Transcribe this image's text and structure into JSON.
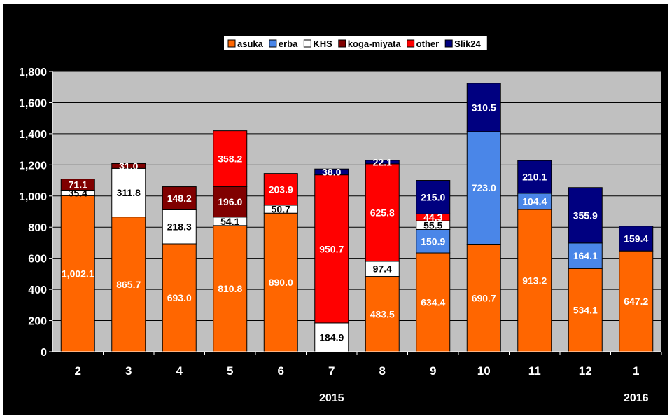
{
  "chart_data": {
    "type": "bar",
    "stacked": true,
    "categories": [
      "2",
      "3",
      "4",
      "5",
      "6",
      "7",
      "8",
      "9",
      "10",
      "11",
      "12",
      "1"
    ],
    "year_labels": [
      {
        "after_category": "7",
        "label": "2015"
      },
      {
        "after_category": "1",
        "label": "2016"
      }
    ],
    "ylim": [
      0,
      1800
    ],
    "yticks": [
      "0",
      "200",
      "400",
      "600",
      "800",
      "1,000",
      "1,200",
      "1,400",
      "1,600",
      "1,800"
    ],
    "grid": true,
    "legend_position": "top",
    "series": [
      {
        "name": "asuka",
        "color": "#ff6600",
        "label_color": "#ffffff",
        "values": [
          1002.1,
          865.7,
          693.0,
          810.8,
          890.0,
          0,
          483.5,
          634.4,
          690.7,
          913.2,
          534.1,
          647.2
        ],
        "labels": [
          "1,002.1",
          "865.7",
          "693.0",
          "810.8",
          "890.0",
          "",
          "483.5",
          "634.4",
          "690.7",
          "913.2",
          "534.1",
          "647.2"
        ]
      },
      {
        "name": "erba",
        "color": "#4a86e8",
        "label_color": "#ffffff",
        "values": [
          0,
          0,
          0,
          0,
          0,
          0,
          0,
          150.9,
          723.0,
          104.4,
          164.1,
          0
        ],
        "labels": [
          "",
          "",
          "",
          "",
          "",
          "",
          "",
          "150.9",
          "723.0",
          "104.4",
          "164.1",
          ""
        ]
      },
      {
        "name": "KHS",
        "color": "#ffffff",
        "label_color": "#000000",
        "values": [
          35.4,
          311.8,
          218.3,
          54.1,
          50.7,
          184.9,
          97.4,
          55.5,
          0,
          0,
          0,
          0
        ],
        "labels": [
          "35.4",
          "311.8",
          "218.3",
          "54.1",
          "50.7",
          "184.9",
          "97.4",
          "55.5",
          "",
          "",
          "",
          ""
        ]
      },
      {
        "name": "koga-miyata",
        "color": "#800000",
        "label_color": "#ffffff",
        "values": [
          71.1,
          31.0,
          148.2,
          196.0,
          0,
          0,
          0,
          0,
          0,
          0,
          0,
          0
        ],
        "labels": [
          "71.1",
          "31.0",
          "148.2",
          "196.0",
          "",
          "",
          "",
          "",
          "",
          "",
          "",
          ""
        ]
      },
      {
        "name": "other",
        "color": "#ff0000",
        "label_color": "#ffffff",
        "values": [
          0,
          0,
          0,
          358.2,
          203.9,
          950.7,
          625.8,
          44.3,
          0,
          0,
          0,
          0
        ],
        "labels": [
          "",
          "",
          "",
          "358.2",
          "203.9",
          "950.7",
          "625.8",
          "44.3",
          "",
          "",
          "",
          ""
        ]
      },
      {
        "name": "Slik24",
        "color": "#000080",
        "label_color": "#ffffff",
        "values": [
          0,
          0,
          0,
          0,
          0,
          38.0,
          22.1,
          215.0,
          310.5,
          210.1,
          355.9,
          159.4
        ],
        "labels": [
          "",
          "",
          "",
          "",
          "",
          "38.0",
          "22.1",
          "215.0",
          "310.5",
          "210.1",
          "355.9",
          "159.4"
        ]
      }
    ]
  }
}
